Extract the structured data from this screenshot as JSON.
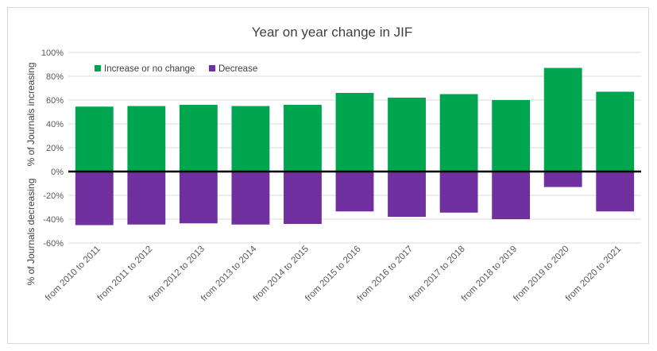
{
  "chart_data": {
    "type": "bar",
    "title": "Year on year change in JIF",
    "ylabel_top": "% of Journals increasing",
    "ylabel_bottom": "% of Journals decreasing",
    "xlabel": "",
    "ylim": [
      -60,
      100
    ],
    "yticks": [
      100,
      80,
      60,
      40,
      20,
      0,
      -20,
      -40,
      -60
    ],
    "ytick_labels": [
      "100%",
      "80%",
      "60%",
      "40%",
      "20%",
      "0%",
      "-20%",
      "-40%",
      "-60%"
    ],
    "grid": true,
    "legend_position": "top-left",
    "categories": [
      "from 2010 to 2011",
      "from 2011 to 2012",
      "from 2012 to 2013",
      "from 2013 to 2014",
      "from 2014 to 2015",
      "from 2015 to 2016",
      "from 2016 to 2017",
      "from 2017 to 2018",
      "from 2018 to 2019",
      "from 2019 to 2020",
      "from 2020 to 2021"
    ],
    "series": [
      {
        "name": "Increase or no change",
        "color": "#00a550",
        "values": [
          54.5,
          55,
          56,
          55,
          56,
          66,
          62,
          65,
          60,
          87,
          67
        ]
      },
      {
        "name": "Decrease",
        "color": "#7030a0",
        "values": [
          -45,
          -44.5,
          -43.5,
          -44.5,
          -44,
          -33.5,
          -38,
          -34.5,
          -40,
          -13,
          -33.5
        ]
      }
    ]
  }
}
